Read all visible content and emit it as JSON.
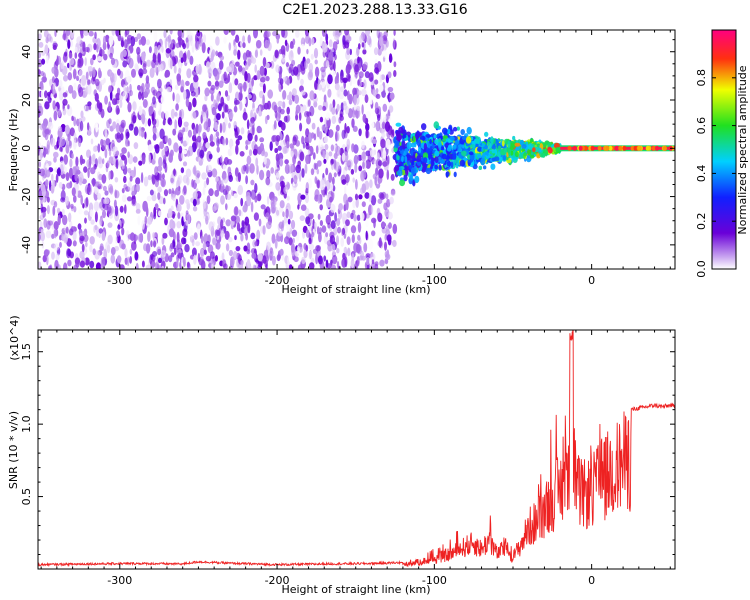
{
  "title": "C2E1.2023.288.13.33.G16",
  "chart_data": [
    {
      "type": "heatmap",
      "xlabel": "Height of straight line (km)",
      "ylabel": "Frequency (Hz)",
      "xlim": [
        -352,
        53
      ],
      "ylim": [
        -50,
        49
      ],
      "xticks": [
        -300,
        -200,
        -100,
        0
      ],
      "yticks": [
        -40,
        -20,
        0,
        20,
        40
      ],
      "colorbar": {
        "label": "Normalized spectral amplitude",
        "range": [
          0.0,
          1.0
        ],
        "ticks": [
          0.0,
          0.2,
          0.4,
          0.6,
          0.8
        ],
        "tick_labels": [
          "0.0",
          "0.2",
          "0.4",
          "0.6",
          "0.8"
        ],
        "colormap": "white-purple-blue-cyan-green-yellow-red-magenta"
      },
      "regions": [
        {
          "description": "scattered noise",
          "x_range": [
            -352,
            -125
          ],
          "y_range": [
            -50,
            49
          ],
          "amplitude": [
            0.0,
            0.15
          ]
        },
        {
          "description": "converging signal band",
          "x_range": [
            -125,
            -20
          ],
          "center_y": 0,
          "half_width_start": 9,
          "half_width_end": 1,
          "amplitude": [
            0.2,
            0.7
          ]
        },
        {
          "description": "narrow carrier line",
          "x_range": [
            -20,
            53
          ],
          "center_y": 0,
          "half_width": 1,
          "amplitude": [
            0.7,
            1.0
          ]
        }
      ],
      "colors": {
        "noise": "#7b3fe0",
        "line": "#ff2244",
        "axis": "#000000"
      }
    },
    {
      "type": "line",
      "xlabel": "Height of straight line (km)",
      "ylabel": "SNR (10 * v/v)",
      "y_multiplier": "(x10^4)",
      "xlim": [
        -352,
        53
      ],
      "ylim": [
        0,
        16500
      ],
      "xticks": [
        -300,
        -200,
        -100,
        0
      ],
      "yticks": [
        5000,
        10000,
        15000
      ],
      "ytick_labels": [
        "0.5",
        "1.0",
        "1.5"
      ],
      "series": [
        {
          "color": "#ee2222",
          "x": [
            -352,
            -320,
            -290,
            -260,
            -250,
            -230,
            -200,
            -170,
            -140,
            -120,
            -110,
            -100,
            -90,
            -80,
            -75,
            -70,
            -65,
            -60,
            -55,
            -50,
            -45,
            -40,
            -35,
            -30,
            -25,
            -20,
            -15,
            -13,
            -10,
            -5,
            0,
            5,
            10,
            15,
            20,
            25,
            30,
            35,
            40,
            45,
            50,
            53
          ],
          "y": [
            300,
            350,
            380,
            350,
            500,
            400,
            300,
            350,
            380,
            450,
            700,
            1000,
            1500,
            2300,
            2600,
            2000,
            3000,
            1500,
            2200,
            1200,
            2500,
            4200,
            4800,
            6000,
            7200,
            8000,
            9500,
            16500,
            8000,
            7500,
            7800,
            8800,
            9500,
            10200,
            10800,
            11000,
            11100,
            11200,
            11300,
            11200,
            11300,
            11200
          ]
        }
      ]
    }
  ]
}
